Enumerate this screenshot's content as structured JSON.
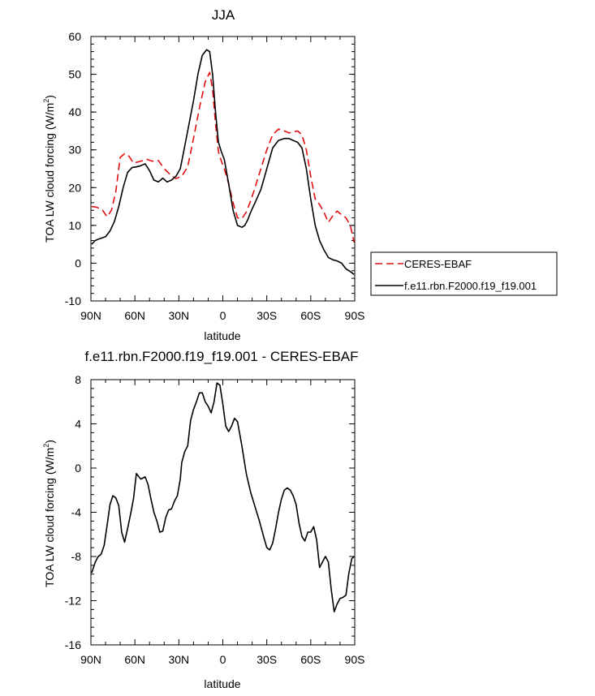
{
  "chart_data": [
    {
      "type": "line",
      "title": "JJA",
      "xlabel": "latitude",
      "ylabel": "TOA LW cloud forcing (W/m",
      "ylabel_sup": "2",
      "ylabel_close": ")",
      "xlim": [
        90,
        -90
      ],
      "ylim": [
        -10,
        60
      ],
      "x_ticks": [
        90,
        60,
        30,
        0,
        -30,
        -60,
        -90
      ],
      "x_tick_labels": [
        "90N",
        "60N",
        "30N",
        "0",
        "30S",
        "60S",
        "90S"
      ],
      "y_ticks": [
        -10,
        0,
        10,
        20,
        30,
        40,
        50,
        60
      ],
      "y_tick_labels": [
        "-10",
        "0",
        "10",
        "20",
        "30",
        "40",
        "50",
        "60"
      ],
      "legend_position": "right",
      "series": [
        {
          "name": "CERES-EBAF",
          "color": "#e01010",
          "dash": "dashed",
          "x": [
            89.5,
            86,
            82,
            79,
            76,
            73,
            70,
            67,
            64,
            61,
            59,
            56,
            52,
            48,
            44,
            40,
            36,
            32,
            28,
            24,
            20,
            16,
            12,
            9,
            7,
            5,
            3,
            1,
            -1,
            -4,
            -7,
            -10,
            -13,
            -16,
            -19,
            -22,
            -26,
            -30,
            -34,
            -38,
            -42,
            -45,
            -48,
            -51,
            -54,
            -57,
            -60,
            -63,
            -66,
            -69,
            -72,
            -75,
            -78,
            -81,
            -84,
            -87,
            -89.5
          ],
          "values": [
            15.0,
            14.8,
            14.0,
            12.3,
            14.0,
            19.0,
            28.0,
            29.0,
            28.3,
            26.5,
            26.7,
            27.0,
            27.5,
            27.0,
            27.2,
            25.0,
            23.5,
            22.4,
            23.0,
            25.5,
            33.0,
            41.0,
            48.0,
            50.5,
            46.0,
            37.0,
            29.5,
            27.0,
            25.0,
            21.0,
            16.0,
            12.0,
            11.8,
            13.5,
            16.5,
            20.0,
            25.0,
            30.0,
            34.0,
            35.5,
            35.0,
            34.5,
            34.7,
            35.0,
            34.0,
            30.0,
            23.0,
            17.0,
            15.5,
            13.5,
            10.8,
            12.5,
            13.8,
            12.8,
            12.0,
            10.0,
            5.5
          ]
        },
        {
          "name": "f.e11.rbn.F2000.f19_f19.001",
          "color": "#000000",
          "dash": "solid",
          "x": [
            89.5,
            87,
            84,
            80,
            77,
            74,
            71,
            68,
            65,
            62,
            59,
            56,
            53,
            50,
            47,
            44,
            41,
            38,
            35,
            32,
            29,
            26,
            23,
            20,
            17,
            14,
            11,
            9,
            7,
            5,
            3,
            1,
            -1,
            -4,
            -7,
            -10,
            -13,
            -15,
            -17,
            -19,
            -22,
            -26,
            -30,
            -34,
            -38,
            -42,
            -45,
            -48,
            -51,
            -54,
            -57,
            -60,
            -63,
            -66,
            -69,
            -72,
            -75,
            -78,
            -81,
            -84,
            -86,
            -88,
            -89.5
          ],
          "values": [
            5.0,
            6.0,
            6.5,
            7.0,
            8.5,
            11.0,
            15.0,
            20.0,
            24.0,
            25.3,
            25.5,
            25.8,
            26.3,
            24.5,
            22.0,
            21.5,
            22.5,
            21.5,
            22.0,
            23.0,
            25.0,
            31.0,
            37.0,
            43.0,
            50.0,
            55.0,
            56.5,
            56.0,
            50.0,
            40.0,
            32.0,
            29.5,
            27.5,
            21.0,
            14.0,
            10.0,
            9.5,
            10.0,
            11.5,
            13.5,
            16.0,
            19.5,
            25.0,
            30.5,
            32.5,
            33.0,
            33.0,
            32.5,
            32.0,
            30.5,
            25.0,
            17.0,
            10.0,
            6.0,
            3.5,
            1.5,
            0.9,
            0.6,
            0.0,
            -1.5,
            -2.0,
            -2.5,
            -3.0
          ]
        }
      ]
    },
    {
      "type": "line",
      "title": "f.e11.rbn.F2000.f19_f19.001 - CERES-EBAF",
      "xlabel": "latitude",
      "ylabel": "TOA LW cloud forcing (W/m",
      "ylabel_sup": "2",
      "ylabel_close": ")",
      "xlim": [
        90,
        -90
      ],
      "ylim": [
        -16,
        8
      ],
      "x_ticks": [
        90,
        60,
        30,
        0,
        -30,
        -60,
        -90
      ],
      "x_tick_labels": [
        "90N",
        "60N",
        "30N",
        "0",
        "30S",
        "60S",
        "90S"
      ],
      "y_ticks": [
        -16,
        -12,
        -8,
        -4,
        0,
        4,
        8
      ],
      "y_tick_labels": [
        "-16",
        "-12",
        "-8",
        "-4",
        "0",
        "4",
        "8"
      ],
      "series": [
        {
          "color": "#000000",
          "dash": "solid",
          "x": [
            89.5,
            87,
            85,
            83,
            81,
            79,
            77,
            75,
            73,
            71,
            69,
            67,
            65,
            63,
            61,
            59,
            56,
            53,
            51,
            49,
            47,
            45,
            43,
            41,
            39,
            37,
            35,
            33,
            31,
            29,
            28,
            26,
            24,
            22,
            20,
            18,
            16,
            14,
            12,
            10,
            8,
            6,
            4,
            2,
            0,
            -2,
            -4,
            -6,
            -8,
            -10,
            -13,
            -16,
            -19,
            -22,
            -25,
            -28,
            -30,
            -32,
            -34,
            -36,
            -38,
            -40,
            -42,
            -44,
            -46,
            -48,
            -50,
            -52,
            -54,
            -56,
            -58,
            -60,
            -62,
            -64,
            -66,
            -68,
            -70,
            -72,
            -74,
            -76,
            -78,
            -80,
            -82,
            -84,
            -86,
            -88,
            -89.5
          ],
          "values": [
            -9.5,
            -8.5,
            -8.0,
            -7.8,
            -7.0,
            -5.2,
            -3.3,
            -2.5,
            -2.7,
            -3.4,
            -5.8,
            -6.7,
            -5.5,
            -4.2,
            -2.8,
            -0.5,
            -1.0,
            -0.8,
            -1.5,
            -2.8,
            -4.0,
            -4.8,
            -5.8,
            -5.7,
            -4.5,
            -3.8,
            -3.7,
            -3.0,
            -2.5,
            -1.0,
            0.5,
            1.5,
            2.0,
            4.3,
            5.3,
            6.0,
            6.8,
            6.8,
            6.0,
            5.6,
            5.0,
            6.0,
            7.7,
            7.5,
            5.8,
            3.8,
            3.3,
            3.8,
            4.5,
            4.2,
            2.0,
            -0.5,
            -2.2,
            -3.5,
            -4.8,
            -6.3,
            -7.2,
            -7.4,
            -6.8,
            -5.5,
            -4.0,
            -2.8,
            -2.0,
            -1.8,
            -2.0,
            -2.5,
            -3.3,
            -5.0,
            -6.2,
            -6.6,
            -5.8,
            -5.8,
            -5.3,
            -6.5,
            -9.0,
            -8.5,
            -8.0,
            -8.5,
            -11.0,
            -13.0,
            -12.3,
            -11.8,
            -11.7,
            -11.5,
            -9.5,
            -8.2,
            -8.0
          ]
        }
      ]
    }
  ]
}
